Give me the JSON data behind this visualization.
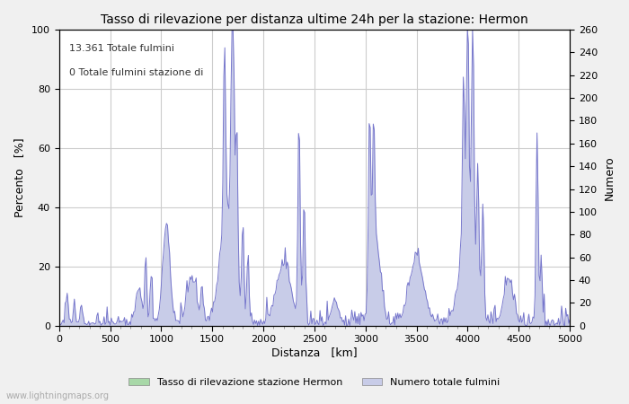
{
  "title": "Tasso di rilevazione per distanza ultime 24h per la stazione: Hermon",
  "xlabel": "Distanza   [km]",
  "ylabel_left": "Percento   [%]",
  "ylabel_right": "Numero",
  "annotation_line1": "13.361 Totale fulmini",
  "annotation_line2": "0 Totale fulmini stazione di",
  "legend_label1": "Tasso di rilevazione stazione Hermon",
  "legend_label2": "Numero totale fulmini",
  "fill_color_blue": "#c8cce8",
  "fill_color_green": "#a8d8a8",
  "line_color": "#7777cc",
  "watermark": "www.lightningmaps.org",
  "xlim": [
    0,
    5000
  ],
  "ylim_left": [
    0,
    100
  ],
  "ylim_right": [
    0,
    260
  ],
  "x_ticks": [
    0,
    500,
    1000,
    1500,
    2000,
    2500,
    3000,
    3500,
    4000,
    4500,
    5000
  ],
  "y_ticks_left": [
    0,
    20,
    40,
    60,
    80,
    100
  ],
  "y_ticks_right": [
    0,
    20,
    40,
    60,
    80,
    100,
    120,
    140,
    160,
    180,
    200,
    220,
    240,
    260
  ],
  "bg_color": "#f0f0f0",
  "plot_bg_color": "#ffffff"
}
